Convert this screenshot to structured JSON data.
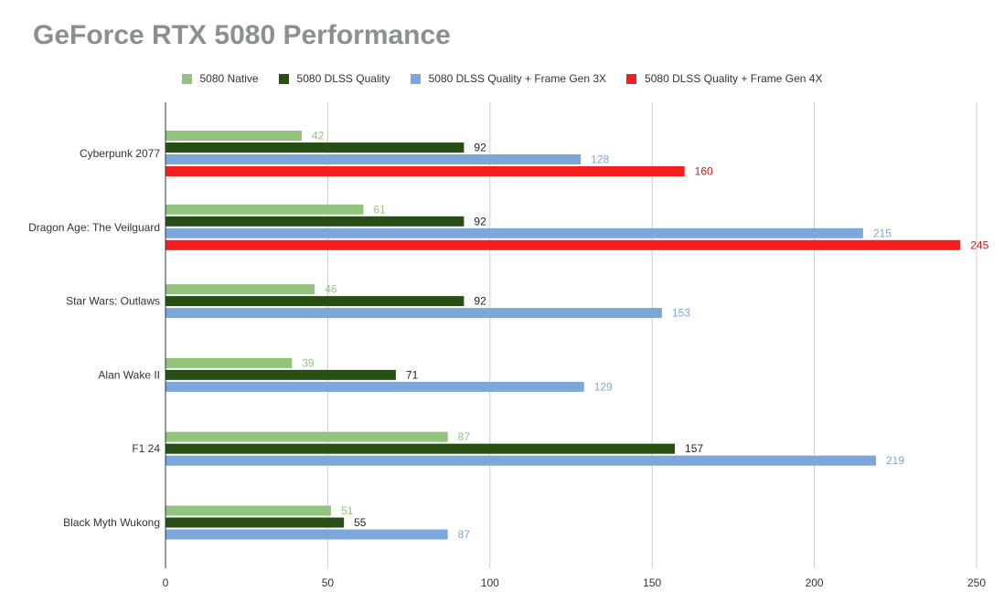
{
  "chart_data": {
    "type": "bar",
    "orientation": "horizontal",
    "title": "GeForce RTX 5080 Performance",
    "xlabel": "",
    "ylabel": "",
    "xlim": [
      0,
      250
    ],
    "x_ticks": [
      0,
      50,
      100,
      150,
      200,
      250
    ],
    "grid": true,
    "legend_position": "top-center",
    "categories": [
      "Cyberpunk 2077",
      "Dragon Age: The Veilguard",
      "Star Wars: Outlaws",
      "Alan Wake II",
      "F1 24",
      "Black Myth Wukong"
    ],
    "series": [
      {
        "name": "5080 Native",
        "color": "#93c47d",
        "label_color": "#93c47d",
        "values": [
          42,
          61,
          46,
          39,
          87,
          51
        ]
      },
      {
        "name": "5080 DLSS Quality",
        "color": "#274e13",
        "label_color": "#222222",
        "values": [
          92,
          92,
          92,
          71,
          157,
          55
        ]
      },
      {
        "name": "5080 DLSS Quality + Frame Gen 3X",
        "color": "#7ba7d9",
        "label_color": "#7ba7d9",
        "values": [
          128,
          215,
          153,
          129,
          219,
          87
        ]
      },
      {
        "name": "5080 DLSS Quality + Frame Gen 4X",
        "color": "#f51d1d",
        "label_color": "#cc1a1a",
        "values": [
          160,
          245,
          null,
          null,
          null,
          null
        ]
      }
    ]
  }
}
